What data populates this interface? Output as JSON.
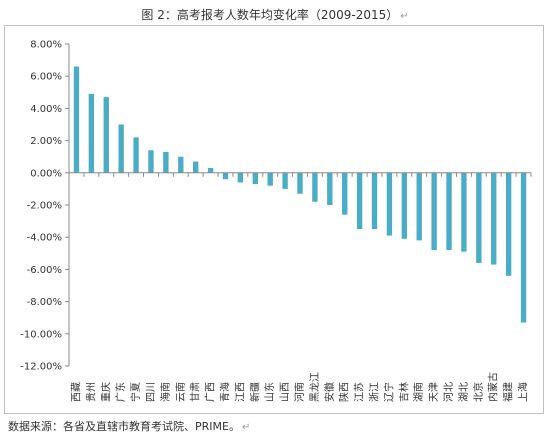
{
  "title": "图 2：高考报考人数年均变化率（2009-2015）",
  "source": "数据来源：各省及直辖市教育考试院、PRIME。",
  "paragraph_mark": "↵",
  "colors": {
    "bar": "#4bacc6",
    "axis": "#888888",
    "frame": "#bfbfbf"
  },
  "chart_data": {
    "type": "bar",
    "title": "图 2：高考报考人数年均变化率（2009-2015）",
    "xlabel": "",
    "ylabel": "",
    "ylim": [
      -12,
      8
    ],
    "yticks": [
      8,
      6,
      4,
      2,
      0,
      -2,
      -4,
      -6,
      -8,
      -10,
      -12
    ],
    "ytick_labels": [
      "8.00%",
      "6.00%",
      "4.00%",
      "2.00%",
      "0.00%",
      "-2.00%",
      "-4.00%",
      "-6.00%",
      "-8.00%",
      "-10.00%",
      "-12.00%"
    ],
    "grid": false,
    "legend": "none",
    "categories": [
      "西藏",
      "贵州",
      "重庆",
      "广东",
      "宁夏",
      "四川",
      "海南",
      "云南",
      "甘肃",
      "广西",
      "青海",
      "江西",
      "新疆",
      "山东",
      "山西",
      "河南",
      "黑龙江",
      "安徽",
      "陕西",
      "江苏",
      "浙江",
      "辽宁",
      "吉林",
      "湖南",
      "天津",
      "河北",
      "湖北",
      "北京",
      "内蒙古",
      "福建",
      "上海"
    ],
    "values": [
      6.6,
      4.9,
      4.7,
      3.0,
      2.2,
      1.4,
      1.3,
      1.0,
      0.7,
      0.3,
      -0.4,
      -0.6,
      -0.7,
      -0.8,
      -1.0,
      -1.3,
      -1.8,
      -2.0,
      -2.6,
      -3.5,
      -3.5,
      -3.9,
      -4.1,
      -4.2,
      -4.8,
      -4.8,
      -4.9,
      -5.6,
      -5.7,
      -6.4,
      -9.3
    ]
  }
}
